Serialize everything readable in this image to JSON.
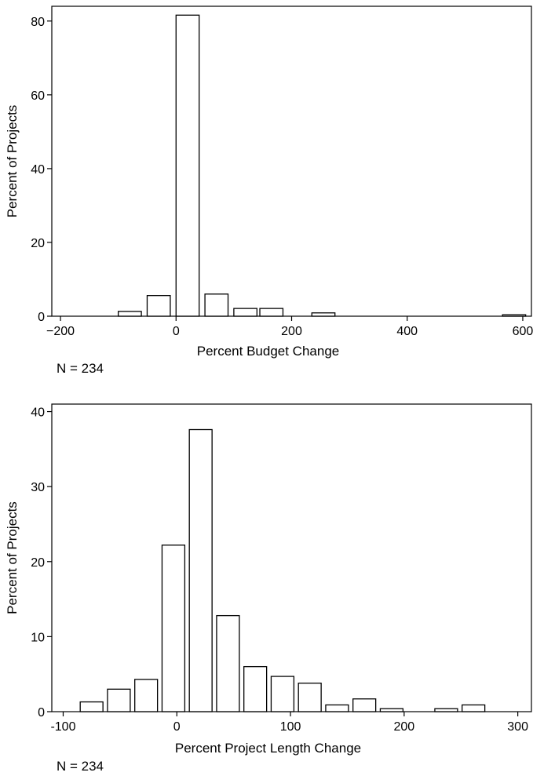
{
  "chart_data": [
    {
      "type": "bar",
      "xlabel": "Percent Budget Change",
      "ylabel": "Percent of Projects",
      "note": "N = 234",
      "xlim": [
        -215,
        615
      ],
      "ylim": [
        0,
        84
      ],
      "xticks": [
        -200,
        0,
        200,
        400,
        600
      ],
      "xtick_labels": [
        "−200",
        "0",
        "200",
        "400",
        "600"
      ],
      "yticks": [
        0,
        20,
        40,
        60,
        80
      ],
      "ytick_labels": [
        "0",
        "20",
        "40",
        "60",
        "80"
      ],
      "bin_width": 40,
      "bins": [
        {
          "x0": -100,
          "x1": -60,
          "value": 1.3
        },
        {
          "x0": -50,
          "x1": -10,
          "value": 5.6
        },
        {
          "x0": 0,
          "x1": 40,
          "value": 81.6
        },
        {
          "x0": 50,
          "x1": 90,
          "value": 6.0
        },
        {
          "x0": 100,
          "x1": 140,
          "value": 2.1
        },
        {
          "x0": 145,
          "x1": 185,
          "value": 2.1
        },
        {
          "x0": 235,
          "x1": 275,
          "value": 0.9
        },
        {
          "x0": 565,
          "x1": 605,
          "value": 0.4
        }
      ],
      "grid": false
    },
    {
      "type": "bar",
      "xlabel": "Percent Project Length Change",
      "ylabel": "Percent of Projects",
      "note": "N = 234",
      "xlim": [
        -110,
        312
      ],
      "ylim": [
        0,
        41
      ],
      "xticks": [
        -100,
        0,
        100,
        200,
        300
      ],
      "xtick_labels": [
        "-100",
        "0",
        "100",
        "200",
        "300"
      ],
      "yticks": [
        0,
        10,
        20,
        30,
        40
      ],
      "ytick_labels": [
        "0",
        "10",
        "20",
        "30",
        "40"
      ],
      "bin_width": 20,
      "bins": [
        {
          "x0": -85,
          "x1": -65,
          "value": 1.3
        },
        {
          "x0": -61,
          "x1": -41,
          "value": 3.0
        },
        {
          "x0": -37,
          "x1": -17,
          "value": 4.3
        },
        {
          "x0": -13,
          "x1": 7,
          "value": 22.2
        },
        {
          "x0": 11,
          "x1": 31,
          "value": 37.6
        },
        {
          "x0": 35,
          "x1": 55,
          "value": 12.8
        },
        {
          "x0": 59,
          "x1": 79,
          "value": 6.0
        },
        {
          "x0": 83,
          "x1": 103,
          "value": 4.7
        },
        {
          "x0": 107,
          "x1": 127,
          "value": 3.8
        },
        {
          "x0": 131,
          "x1": 151,
          "value": 0.9
        },
        {
          "x0": 155,
          "x1": 175,
          "value": 1.7
        },
        {
          "x0": 179,
          "x1": 199,
          "value": 0.4
        },
        {
          "x0": 227,
          "x1": 247,
          "value": 0.4
        },
        {
          "x0": 251,
          "x1": 271,
          "value": 0.9
        }
      ],
      "grid": false
    }
  ]
}
